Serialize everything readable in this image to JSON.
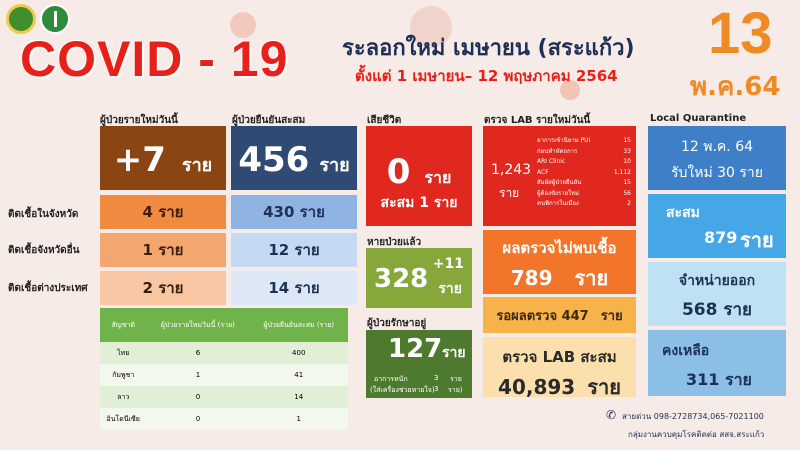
{
  "header": {
    "title": "COVID - 19",
    "subtitle": "ระลอกใหม่ เมษายน (สระแก้ว)",
    "period": "ตั้งแต่ 1 เมษายน– 12 พฤษภาคม 2564",
    "date_day": "13",
    "date_month": "พ.ค.64"
  },
  "new_cases": {
    "label": "ผู้ป่วยรายใหม่วันนี้",
    "value": "+7",
    "unit": "ราย",
    "local": "4 ราย",
    "other_province": "1 ราย",
    "abroad": "2 ราย"
  },
  "cumulative": {
    "label": "ผู้ป่วยยืนยันสะสม",
    "value": "456",
    "unit": "ราย",
    "local": "430 ราย",
    "other_province": "12 ราย",
    "abroad": "14 ราย"
  },
  "row_labels": {
    "local": "ติดเชื้อในจังหวัด",
    "other_province": "ติดเชื้อจังหวัดอื่น",
    "abroad": "ติดเชื้อต่างประเทศ"
  },
  "nationality_table": {
    "headers": [
      "สัญชาติ",
      "ผู้ป่วยรายใหม่วันนี้ (ราย)",
      "ผู้ป่วยยืนยันสะสม (ราย)"
    ],
    "rows": [
      [
        "ไทย",
        "6",
        "400"
      ],
      [
        "กัมพูชา",
        "1",
        "41"
      ],
      [
        "ลาว",
        "0",
        "14"
      ],
      [
        "อินโดนีเซีย",
        "0",
        "1"
      ]
    ]
  },
  "deaths": {
    "label": "เสียชีวิต",
    "value": "0",
    "unit": "ราย",
    "cumulative": "สะสม 1 ราย"
  },
  "recovered": {
    "label": "หายป่วยแล้ว",
    "value": "328",
    "delta": "+11",
    "unit": "ราย"
  },
  "in_treatment": {
    "label": "ผู้ป่วยรักษาอยู่",
    "value": "127",
    "unit": "ราย",
    "severe_label": "อาการหนัก",
    "severe_value": "3",
    "severe_unit": "ราย",
    "ventilator_label": "(ใส่เครื่องช่วยหายใจ)",
    "ventilator_value": "3",
    "ventilator_unit": "ราย)"
  },
  "lab_today": {
    "label": "ตรวจ LAB รายใหม่วันนี้",
    "total": "1,243",
    "unit": "ราย",
    "breakdown": [
      [
        "อาการเข้านิยาม PUI",
        "15"
      ],
      [
        "ก่อนทำหัตถการ",
        "33"
      ],
      [
        "ARI Clinic",
        "10"
      ],
      [
        "ACF",
        "1,112"
      ],
      [
        "สัมผัสผู้ป่วยยืนยัน",
        "15"
      ],
      [
        "ผู้ต้องขังรายใหม่",
        "56"
      ],
      [
        "คนพิการในเมือง",
        "2"
      ]
    ]
  },
  "lab_negative": {
    "label": "ผลตรวจไม่พบเชื้อ",
    "value": "789",
    "unit": "ราย"
  },
  "lab_pending": {
    "label": "รอผลตรวจ 447",
    "unit": "ราย"
  },
  "lab_cumulative": {
    "label": "ตรวจ LAB สะสม",
    "value": "40,893",
    "unit": "ราย"
  },
  "quarantine": {
    "title": "Local Quarantine",
    "date": "12 พ.ค. 64",
    "new_today": "รับใหม่ 30 ราย",
    "cumulative_label": "สะสม",
    "cumulative_value": "879",
    "discharged_label": "จำหน่ายออก",
    "discharged_value": "568 ราย",
    "remaining_label": "คงเหลือ",
    "remaining_value": "311 ราย",
    "unit": "ราย"
  },
  "footer": {
    "hotline": "สายด่วน 098-2728734,065-7021100",
    "org": "กลุ่มงานควบคุมโรคติดต่อ สสจ.สระแก้ว"
  },
  "colors": {
    "title_red": "#e8201a",
    "date_orange": "#ef8a25",
    "brown": "#8b4513",
    "navy": "#2f4a75",
    "red": "#e0281f",
    "green": "#86a83a",
    "dark_green": "#4d7a2e",
    "teal_blue": "#3f9ad8"
  }
}
